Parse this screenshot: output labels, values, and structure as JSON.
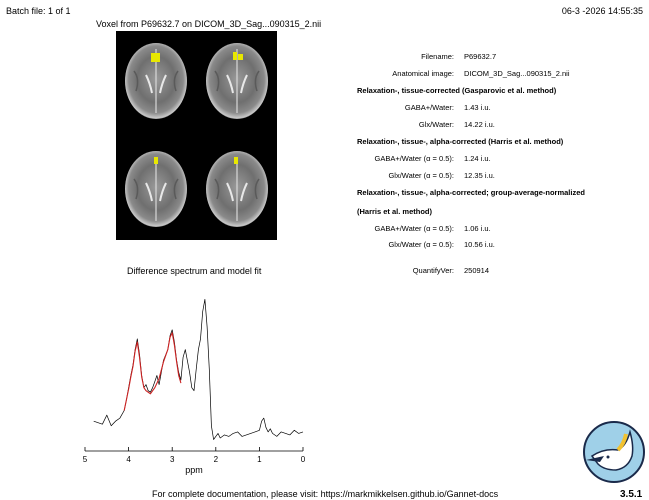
{
  "header": {
    "batch": "Batch file: 1 of 1",
    "datetime": "06-3 -2026 14:55:35",
    "voxel_title": "Voxel from P69632.7 on DICOM_3D_Sag...090315_2.nii"
  },
  "info": {
    "filename_label": "Filename:",
    "filename_value": "P69632.7",
    "anat_label": "Anatomical image:",
    "anat_value": "DICOM_3D_Sag...090315_2.nii",
    "sec1_title": "Relaxation-, tissue-corrected (Gasparovic et al. method)",
    "sec1_gaba_label": "GABA+/Water:",
    "sec1_gaba_value": "1.43 i.u.",
    "sec1_glx_label": "Glx/Water:",
    "sec1_glx_value": "14.22 i.u.",
    "sec2_title": "Relaxation-, tissue-, alpha-corrected (Harris et al. method)",
    "sec2_gaba_label": "GABA+/Water (α = 0.5):",
    "sec2_gaba_value": "1.24 i.u.",
    "sec2_glx_label": "Glx/Water (α = 0.5):",
    "sec2_glx_value": "12.35 i.u.",
    "sec3_title_line1": "Relaxation-, tissue-, alpha-corrected; group-average-normalized",
    "sec3_title_line2": "(Harris et al. method)",
    "sec3_gaba_label": "GABA+/Water (α = 0.5):",
    "sec3_gaba_value": "1.06 i.u.",
    "sec3_glx_label": "Glx/Water (α = 0.5):",
    "sec3_glx_value": "10.56 i.u.",
    "quantify_label": "QuantifyVer:",
    "quantify_value": "250914"
  },
  "chart_data": {
    "type": "line",
    "title": "Difference spectrum and model fit",
    "xlabel": "ppm",
    "ylabel": "",
    "xlim": [
      5,
      0
    ],
    "x_reversed": true,
    "x_ticks": [
      "5",
      "4",
      "3",
      "2",
      "1",
      "0"
    ],
    "series": [
      {
        "color": "#000000",
        "x": [
          4.8,
          4.6,
          4.5,
          4.4,
          4.3,
          4.2,
          4.1,
          4.05,
          4.0,
          3.95,
          3.9,
          3.85,
          3.8,
          3.75,
          3.7,
          3.65,
          3.6,
          3.55,
          3.5,
          3.45,
          3.4,
          3.35,
          3.3,
          3.2,
          3.1,
          3.05,
          3.0,
          2.95,
          2.9,
          2.85,
          2.8,
          2.75,
          2.7,
          2.6,
          2.55,
          2.5,
          2.45,
          2.4,
          2.35,
          2.3,
          2.25,
          2.2,
          2.15,
          2.1,
          2.05,
          2.0,
          1.95,
          1.9,
          1.8,
          1.7,
          1.6,
          1.5,
          1.4,
          1.3,
          1.2,
          1.1,
          1.0,
          0.95,
          0.9,
          0.85,
          0.8,
          0.75,
          0.7,
          0.6,
          0.5,
          0.4,
          0.3,
          0.2,
          0.1,
          0.0
        ],
        "y": [
          0.08,
          0.06,
          0.12,
          0.05,
          0.08,
          0.1,
          0.15,
          0.22,
          0.3,
          0.38,
          0.45,
          0.55,
          0.62,
          0.52,
          0.38,
          0.3,
          0.32,
          0.28,
          0.27,
          0.3,
          0.34,
          0.38,
          0.32,
          0.48,
          0.55,
          0.64,
          0.68,
          0.6,
          0.48,
          0.4,
          0.35,
          0.5,
          0.55,
          0.4,
          0.3,
          0.28,
          0.42,
          0.55,
          0.62,
          0.8,
          0.88,
          0.7,
          0.42,
          0.05,
          -0.04,
          -0.02,
          0.0,
          -0.03,
          -0.01,
          -0.02,
          0.0,
          0.01,
          -0.02,
          -0.01,
          0.0,
          0.01,
          0.02,
          0.08,
          0.1,
          0.04,
          0.01,
          0.03,
          0.0,
          -0.02,
          0.01,
          0.0,
          -0.01,
          0.02,
          0.0,
          0.01
        ]
      },
      {
        "color": "#cc2222",
        "x": [
          4.1,
          4.0,
          3.95,
          3.9,
          3.85,
          3.8,
          3.75,
          3.7,
          3.65,
          3.6,
          3.5,
          3.4,
          3.3,
          3.2,
          3.1,
          3.05,
          3.0,
          2.95,
          2.9,
          2.85,
          2.8
        ],
        "y": [
          0.15,
          0.29,
          0.37,
          0.44,
          0.54,
          0.6,
          0.5,
          0.37,
          0.3,
          0.28,
          0.26,
          0.3,
          0.36,
          0.47,
          0.55,
          0.63,
          0.66,
          0.58,
          0.47,
          0.38,
          0.33
        ]
      }
    ]
  },
  "footer": {
    "docs_text": "For complete documentation, please visit: https://markmikkelsen.github.io/Gannet-docs",
    "version": "3.5.1"
  }
}
